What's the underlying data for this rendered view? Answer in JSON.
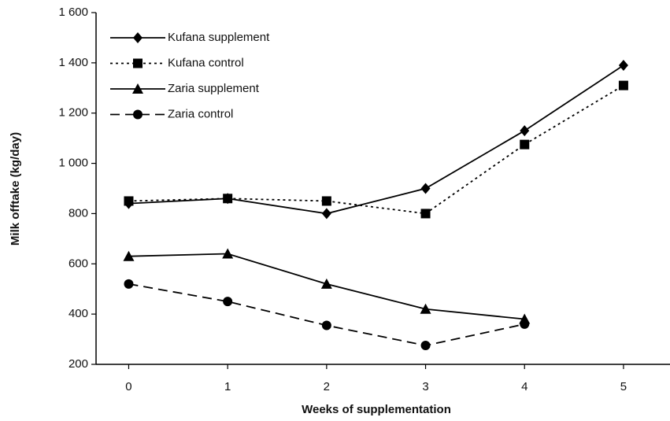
{
  "chart_data": {
    "type": "line",
    "x_label": "Weeks of supplementation",
    "y_label": "Milk offtake (kg/day)",
    "x": [
      0,
      1,
      2,
      3,
      4,
      5
    ],
    "series": [
      {
        "name": "Kufana supplement",
        "color": "#000000",
        "line_style": "solid",
        "marker": "diamond",
        "values": [
          840,
          860,
          800,
          900,
          1130,
          1390
        ]
      },
      {
        "name": "Kufana control",
        "color": "#000000",
        "line_style": "dotted",
        "marker": "square",
        "values": [
          850,
          860,
          850,
          800,
          1075,
          1310
        ]
      },
      {
        "name": "Zaria supplement",
        "color": "#000000",
        "line_style": "solid",
        "marker": "triangle",
        "values": [
          630,
          640,
          520,
          420,
          380,
          null
        ]
      },
      {
        "name": "Zaria control",
        "color": "#000000",
        "line_style": "dashed",
        "marker": "circle",
        "values": [
          520,
          450,
          355,
          275,
          360,
          null
        ]
      }
    ],
    "xlim": [
      -0.33,
      5.47
    ],
    "ylim": [
      200,
      1600
    ],
    "xticks": [
      0,
      1,
      2,
      3,
      4,
      5
    ],
    "yticks": [
      200,
      400,
      600,
      800,
      {
        "value": 1000,
        "label": "1 000"
      },
      {
        "value": 1200,
        "label": "1 200"
      },
      {
        "value": 1400,
        "label": "1 400"
      },
      {
        "value": 1600,
        "label": "1 600"
      }
    ],
    "legend": "upper left",
    "grid": false
  }
}
